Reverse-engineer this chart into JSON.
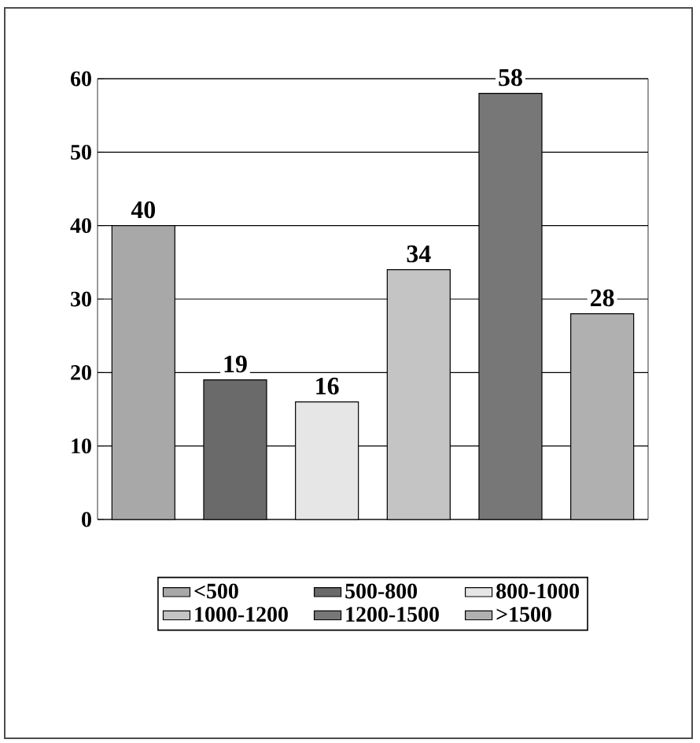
{
  "chart_data": {
    "type": "bar",
    "categories": [
      null,
      null,
      null,
      null,
      null,
      null
    ],
    "series": [
      {
        "name": "<500",
        "color": "#a8a8a8",
        "values": [
          40,
          null,
          null,
          null,
          null,
          null
        ]
      },
      {
        "name": "500-800",
        "color": "#6a6a6a",
        "values": [
          null,
          19,
          null,
          null,
          null,
          null
        ]
      },
      {
        "name": "800-1000",
        "color": "#e6e6e6",
        "values": [
          null,
          null,
          16,
          null,
          null,
          null
        ]
      },
      {
        "name": "1000-1200",
        "color": "#c4c4c4",
        "values": [
          null,
          null,
          null,
          34,
          null,
          null
        ]
      },
      {
        "name": "1200-1500",
        "color": "#777777",
        "values": [
          null,
          null,
          null,
          null,
          58,
          null
        ]
      },
      {
        "name": ">1500",
        "color": "#b0b0b0",
        "values": [
          null,
          null,
          null,
          null,
          null,
          28
        ]
      }
    ],
    "ylim": [
      0,
      60
    ],
    "yticks": [
      0,
      10,
      20,
      30,
      40,
      50,
      60
    ],
    "grid": "y",
    "data_labels": true,
    "legend": "bottom",
    "tick_labels": "y"
  }
}
